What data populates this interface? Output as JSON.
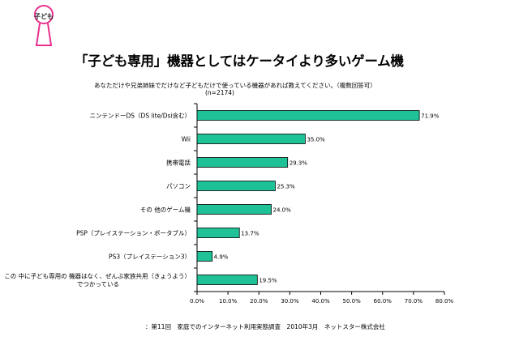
{
  "badge": {
    "text": "子ども",
    "color": "#e8308c"
  },
  "header": {
    "title": "「子ども専用」機器としてはケータイより多いゲーム機",
    "subtitle": "あなただけや兄弟姉妹でだけなど子どもだけで使っている機器があれば教えてください。（複数回答可）",
    "sample_note": "(n=2174)"
  },
  "chart_data": {
    "type": "bar",
    "orientation": "horizontal",
    "categories": [
      "ニンテンドーDS（DS lite/Dsi含む）",
      "Wii",
      "携帯電話",
      "パソコン",
      "その 他のゲーム機",
      "PSP（プレイステーション・ポータブル）",
      "PS3（プレイステーション3）",
      [
        "この 中に子ども専用の 機器はなく、ぜんぶ家族共用（きょうよう）",
        "でつかっている"
      ]
    ],
    "values": [
      71.9,
      35.0,
      29.3,
      25.3,
      24.0,
      13.7,
      4.9,
      19.5
    ],
    "value_labels": [
      "71.9%",
      "35.0%",
      "29.3%",
      "25.3%",
      "24.0%",
      "13.7%",
      "4.9%",
      "19.5%"
    ],
    "xlim": [
      0,
      80
    ],
    "x_ticks": [
      "0.0%",
      "10.0%",
      "20.0%",
      "30.0%",
      "40.0%",
      "50.0%",
      "60.0%",
      "70.0%",
      "80.0%"
    ],
    "bar_color": "#1fc196",
    "grid": false,
    "legend": "none"
  },
  "footer": {
    "source": "：第11回　家庭でのインターネット利用実態調査　2010年3月　ネットスター株式会社"
  }
}
